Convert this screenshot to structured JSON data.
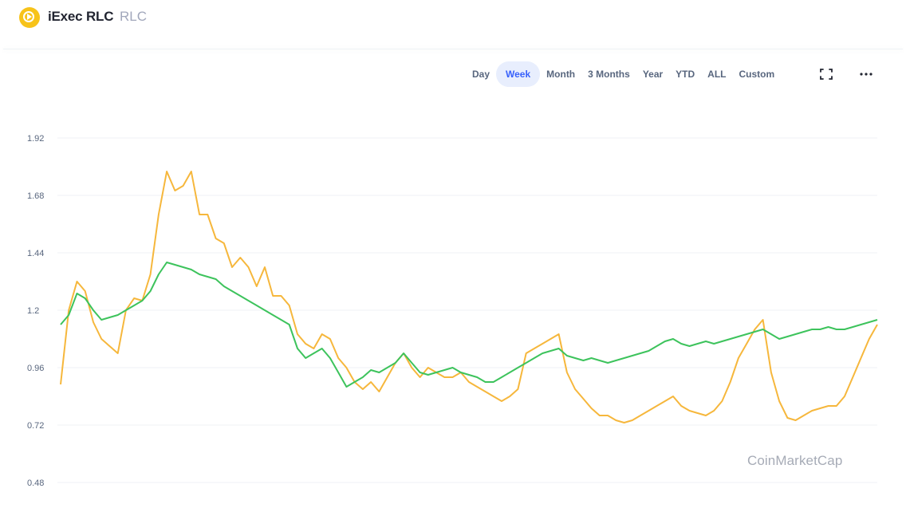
{
  "header": {
    "coin_name": "iExec RLC",
    "coin_symbol": "RLC"
  },
  "range_buttons": [
    {
      "label": "Day",
      "active": false
    },
    {
      "label": "Week",
      "active": true
    },
    {
      "label": "Month",
      "active": false
    },
    {
      "label": "3 Months",
      "active": false
    },
    {
      "label": "Year",
      "active": false
    },
    {
      "label": "YTD",
      "active": false
    },
    {
      "label": "ALL",
      "active": false
    },
    {
      "label": "Custom",
      "active": false
    }
  ],
  "icons": {
    "fullscreen": "fullscreen-icon",
    "more": "more-options-icon",
    "logo": "iexec-logo-icon"
  },
  "watermark": "CoinMarketCap",
  "colors": {
    "accent": "#3861fb",
    "price_line": "#f6b73c",
    "market_line": "#3dc35c",
    "logo": "#f7c31a",
    "grid": "#eff2f5"
  },
  "chart_data": {
    "type": "line",
    "title": "",
    "xlabel": "",
    "ylabel": "",
    "ylim": [
      0.48,
      1.92
    ],
    "yticks": [
      "1.92",
      "1.68",
      "1.44",
      "1.2",
      "0.96",
      "0.72",
      "0.48"
    ],
    "grid": true,
    "legend": "none",
    "x": [
      0,
      1,
      2,
      3,
      4,
      5,
      6,
      7,
      8,
      9,
      10,
      11,
      12,
      13,
      14,
      15,
      16,
      17,
      18,
      19,
      20,
      21,
      22,
      23,
      24,
      25,
      26,
      27,
      28,
      29,
      30,
      31,
      32,
      33,
      34,
      35,
      36,
      37,
      38,
      39,
      40,
      41,
      42,
      43,
      44,
      45,
      46,
      47,
      48,
      49,
      50,
      51,
      52,
      53,
      54,
      55,
      56,
      57,
      58,
      59,
      60,
      61,
      62,
      63,
      64,
      65,
      66,
      67,
      68,
      69,
      70,
      71,
      72,
      73,
      74,
      75,
      76,
      77,
      78,
      79,
      80,
      81,
      82,
      83,
      84,
      85,
      86,
      87,
      88,
      89,
      90,
      91,
      92,
      93,
      94,
      95,
      96,
      97,
      98,
      99,
      100
    ],
    "series": [
      {
        "values": [
          0.89,
          1.2,
          1.32,
          1.28,
          1.15,
          1.08,
          1.05,
          1.02,
          1.2,
          1.25,
          1.24,
          1.35,
          1.6,
          1.78,
          1.7,
          1.72,
          1.78,
          1.6,
          1.6,
          1.5,
          1.48,
          1.38,
          1.42,
          1.38,
          1.3,
          1.38,
          1.26,
          1.26,
          1.22,
          1.1,
          1.06,
          1.04,
          1.1,
          1.08,
          1.0,
          0.96,
          0.9,
          0.87,
          0.9,
          0.86,
          0.92,
          0.98,
          1.02,
          0.96,
          0.92,
          0.96,
          0.94,
          0.92,
          0.92,
          0.94,
          0.9,
          0.88,
          0.86,
          0.84,
          0.82,
          0.84,
          0.87,
          1.02,
          1.04,
          1.06,
          1.08,
          1.1,
          0.94,
          0.87,
          0.83,
          0.79,
          0.76,
          0.76,
          0.74,
          0.73,
          0.74,
          0.76,
          0.78,
          0.8,
          0.82,
          0.84,
          0.8,
          0.78,
          0.77,
          0.76,
          0.78,
          0.82,
          0.9,
          1.0,
          1.06,
          1.12,
          1.16,
          0.94,
          0.82,
          0.75,
          0.74,
          0.76,
          0.78,
          0.79,
          0.8,
          0.8,
          0.84,
          0.92,
          1.0,
          1.08,
          1.14
        ]
      },
      {
        "values": [
          1.14,
          1.18,
          1.27,
          1.25,
          1.2,
          1.16,
          1.17,
          1.18,
          1.2,
          1.22,
          1.24,
          1.28,
          1.35,
          1.4,
          1.39,
          1.38,
          1.37,
          1.35,
          1.34,
          1.33,
          1.3,
          1.28,
          1.26,
          1.24,
          1.22,
          1.2,
          1.18,
          1.16,
          1.14,
          1.04,
          1.0,
          1.02,
          1.04,
          1.0,
          0.94,
          0.88,
          0.9,
          0.92,
          0.95,
          0.94,
          0.96,
          0.98,
          1.02,
          0.98,
          0.94,
          0.93,
          0.94,
          0.95,
          0.96,
          0.94,
          0.93,
          0.92,
          0.9,
          0.9,
          0.92,
          0.94,
          0.96,
          0.98,
          1.0,
          1.02,
          1.03,
          1.04,
          1.01,
          1.0,
          0.99,
          1.0,
          0.99,
          0.98,
          0.99,
          1.0,
          1.01,
          1.02,
          1.03,
          1.05,
          1.07,
          1.08,
          1.06,
          1.05,
          1.06,
          1.07,
          1.06,
          1.07,
          1.08,
          1.09,
          1.1,
          1.11,
          1.12,
          1.1,
          1.08,
          1.09,
          1.1,
          1.11,
          1.12,
          1.12,
          1.13,
          1.12,
          1.12,
          1.13,
          1.14,
          1.15,
          1.16
        ]
      }
    ]
  }
}
